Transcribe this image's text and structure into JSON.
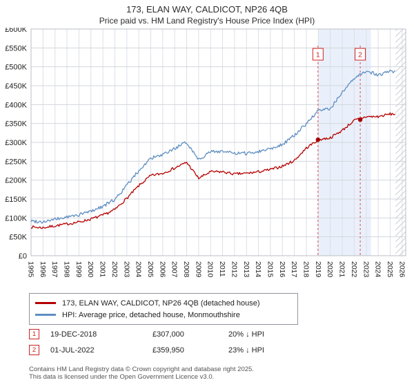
{
  "chart_data": {
    "type": "line",
    "title": "173, ELAN WAY, CALDICOT, NP26 4QB",
    "subtitle": "Price paid vs. HM Land Registry's House Price Index (HPI)",
    "units": "GBP thousands",
    "ylim": [
      0,
      600
    ],
    "xlim": [
      1995,
      2026.3
    ],
    "grid": true,
    "legend_position": "bottom-left",
    "y_tick_labels": [
      "£0",
      "£50K",
      "£100K",
      "£150K",
      "£200K",
      "£250K",
      "£300K",
      "£350K",
      "£400K",
      "£450K",
      "£500K",
      "£550K",
      "£600K"
    ],
    "x_ticks": [
      1995,
      1996,
      1997,
      1998,
      1999,
      2000,
      2001,
      2002,
      2003,
      2004,
      2005,
      2006,
      2007,
      2008,
      2009,
      2010,
      2011,
      2012,
      2013,
      2014,
      2015,
      2016,
      2017,
      2018,
      2019,
      2020,
      2021,
      2022,
      2023,
      2024,
      2025,
      2026
    ],
    "series": [
      {
        "name": "173, ELAN WAY, CALDICOT, NP26 4QB (detached house)",
        "color": "#b40000",
        "noise": 7,
        "x": [
          1995,
          1996,
          1997,
          1998,
          1999,
          2000,
          2001,
          2002,
          2003,
          2004,
          2005,
          2006,
          2007,
          2008,
          2009,
          2010,
          2011,
          2012,
          2013,
          2014,
          2015,
          2016,
          2017,
          2018,
          2019,
          2020,
          2021,
          2022,
          2023,
          2024,
          2025
        ],
        "values": [
          76,
          74,
          79,
          84,
          89,
          97,
          107,
          122,
          152,
          185,
          212,
          218,
          232,
          247,
          205,
          222,
          222,
          216,
          218,
          222,
          228,
          237,
          252,
          285,
          307,
          312,
          332,
          358,
          368,
          368,
          375
        ]
      },
      {
        "name": "HPI: Average price, detached house, Monmouthshire",
        "color": "#5e8ec2",
        "noise": 9,
        "x": [
          1995,
          1996,
          1997,
          1998,
          1999,
          2000,
          2001,
          2002,
          2003,
          2004,
          2005,
          2006,
          2007,
          2008,
          2009,
          2010,
          2011,
          2012,
          2013,
          2014,
          2015,
          2016,
          2017,
          2018,
          2019,
          2020,
          2021,
          2022,
          2023,
          2024,
          2025
        ],
        "values": [
          92,
          90,
          96,
          102,
          108,
          118,
          131,
          149,
          186,
          225,
          258,
          266,
          284,
          300,
          255,
          275,
          277,
          270,
          271,
          276,
          284,
          295,
          318,
          350,
          383,
          390,
          432,
          468,
          490,
          478,
          488
        ]
      }
    ],
    "sales": [
      {
        "label": "1",
        "date": "19-DEC-2018",
        "price": "£307,000",
        "hpi": "20% ↓ HPI",
        "x": 2018.97,
        "value": 307
      },
      {
        "label": "2",
        "date": "01-JUL-2022",
        "price": "£359,950",
        "hpi": "23% ↓ HPI",
        "x": 2022.5,
        "value": 359.95
      }
    ],
    "shaded_region": {
      "from": 2018.97,
      "to": 2023.4,
      "color": "#eaf0fb"
    },
    "hatch_region": {
      "from": 2025.45,
      "to": 2026.3
    }
  },
  "footer": {
    "line1": "Contains HM Land Registry data © Crown copyright and database right 2025.",
    "line2": "This data is licensed under the Open Government Licence v3.0."
  }
}
